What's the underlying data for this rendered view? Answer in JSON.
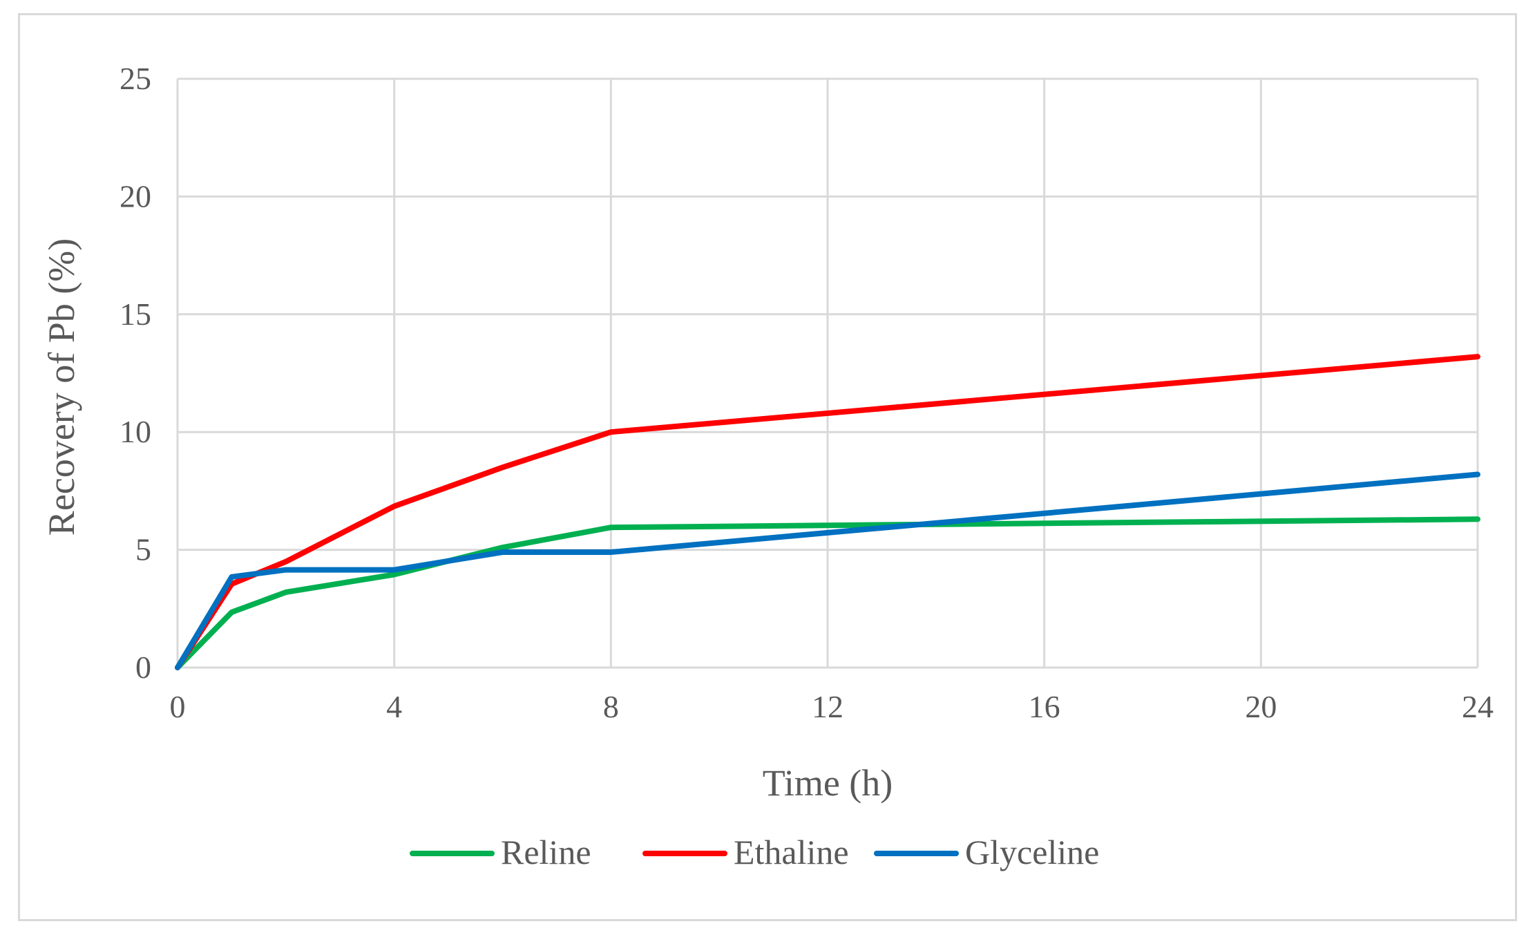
{
  "chart_data": {
    "type": "line",
    "title": "",
    "xlabel": "Time (h)",
    "ylabel": "Recovery of Pb (%)",
    "xlim": [
      0,
      24
    ],
    "ylim": [
      0,
      25
    ],
    "xticks": [
      0,
      4,
      8,
      12,
      16,
      20,
      24
    ],
    "yticks": [
      0,
      5,
      10,
      15,
      20,
      25
    ],
    "grid": true,
    "legend_position": "bottom",
    "series": [
      {
        "name": "Reline",
        "color": "#00b050",
        "x": [
          0,
          1,
          2,
          4,
          6,
          8,
          24
        ],
        "y": [
          0,
          2.35,
          3.2,
          3.95,
          5.1,
          5.95,
          6.3
        ]
      },
      {
        "name": "Ethaline",
        "color": "#ff0000",
        "x": [
          0,
          1,
          2,
          4,
          6,
          8,
          24
        ],
        "y": [
          0,
          3.55,
          4.5,
          6.85,
          8.5,
          10.0,
          13.2
        ]
      },
      {
        "name": "Glyceline",
        "color": "#0070c0",
        "x": [
          0,
          1,
          2,
          4,
          6,
          8,
          24
        ],
        "y": [
          0,
          3.85,
          4.15,
          4.15,
          4.9,
          4.9,
          8.2
        ]
      }
    ]
  }
}
